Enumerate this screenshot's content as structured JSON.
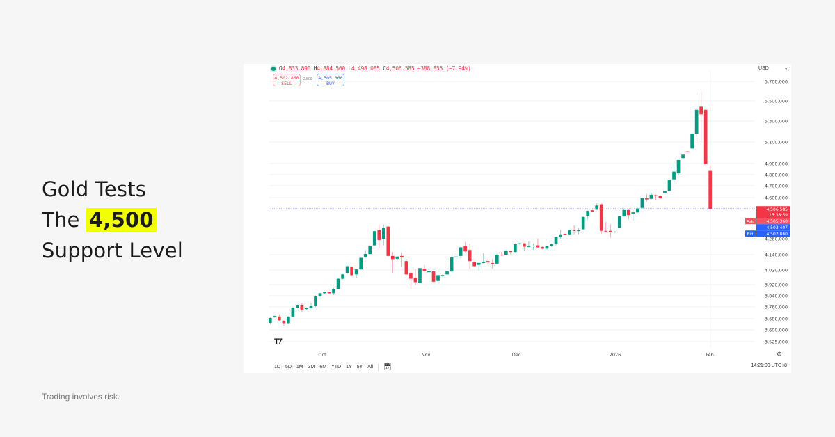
{
  "headline": {
    "line1": "Gold Tests",
    "line2_prefix": "The",
    "line2_highlight": "4,500",
    "line3": "Support Level"
  },
  "footer": "Trading involves risk.",
  "colors": {
    "up": "#089981",
    "down": "#f23645",
    "highlight": "#f2ff00",
    "bid": "#2962ff"
  },
  "chart_header": {
    "o_label": "O",
    "o": "4,833.890",
    "h_label": "H",
    "h": "4,884.560",
    "l_label": "L",
    "l": "4,498.085",
    "c_label": "C",
    "c": "4,506.585",
    "change": "−388.855 (−7.94%)",
    "sell_price": "4,502.860",
    "sell_label": "SELL",
    "spread": "2.500",
    "buy_price": "4,505.360",
    "buy_label": "BUY",
    "currency": "USD"
  },
  "timeframes": [
    "1D",
    "5D",
    "1M",
    "3M",
    "6M",
    "YTD",
    "1Y",
    "5Y",
    "All"
  ],
  "timezone": "14:21:00 UTC+8",
  "logo": "TV",
  "chart_data": {
    "type": "candlestick",
    "x_labels": [
      "Oct",
      "Nov",
      "Dec",
      "2026",
      "Feb"
    ],
    "y_ticks": [
      5700,
      5500,
      5300,
      5100,
      4900,
      4800,
      4700,
      4600,
      4260,
      4140,
      4020,
      3920,
      3840,
      3760,
      3680,
      3600,
      3525
    ],
    "y_tick_labels": [
      "5,700.000",
      "5,500.000",
      "5,300.000",
      "5,100.000",
      "4,900.000",
      "4,800.000",
      "4,700.000",
      "4,600.000",
      "4,260.000",
      "4,140.000",
      "4,020.000",
      "3,920.000",
      "3,840.000",
      "3,760.000",
      "3,680.000",
      "3,600.000",
      "3,525.000"
    ],
    "price_line": 4506.585,
    "price_labels": {
      "last": "4,506.585",
      "countdown": "15:38:59",
      "ask_label": "Ask",
      "ask": "4,505.360",
      "mid": "4,503.407",
      "bid_label": "Bid",
      "bid": "4,502.860"
    },
    "ohlc": [
      [
        3650,
        3690,
        3640,
        3685
      ],
      [
        3690,
        3702,
        3686,
        3698
      ],
      [
        3695,
        3712,
        3660,
        3668
      ],
      [
        3665,
        3670,
        3630,
        3648
      ],
      [
        3648,
        3698,
        3644,
        3695
      ],
      [
        3695,
        3760,
        3690,
        3755
      ],
      [
        3755,
        3774,
        3750,
        3770
      ],
      [
        3770,
        3790,
        3725,
        3742
      ],
      [
        3745,
        3756,
        3740,
        3752
      ],
      [
        3752,
        3790,
        3748,
        3765
      ],
      [
        3765,
        3840,
        3760,
        3835
      ],
      [
        3835,
        3862,
        3830,
        3858
      ],
      [
        3858,
        3870,
        3854,
        3866
      ],
      [
        3866,
        3870,
        3852,
        3858
      ],
      [
        3858,
        3895,
        3845,
        3890
      ],
      [
        3890,
        3964,
        3885,
        3960
      ],
      [
        3960,
        3994,
        3955,
        3990
      ],
      [
        4000,
        4055,
        3994,
        4050
      ],
      [
        4043,
        4048,
        3980,
        3985
      ],
      [
        3990,
        4030,
        3965,
        4025
      ],
      [
        4025,
        4120,
        4020,
        4115
      ],
      [
        4120,
        4175,
        4115,
        4145
      ],
      [
        4145,
        4210,
        4140,
        4205
      ],
      [
        4210,
        4326,
        4205,
        4322
      ],
      [
        4330,
        4378,
        4190,
        4250
      ],
      [
        4258,
        4378,
        4210,
        4348
      ],
      [
        4360,
        4365,
        4125,
        4130
      ],
      [
        4130,
        4160,
        4000,
        4105
      ],
      [
        4108,
        4128,
        4102,
        4125
      ],
      [
        4130,
        4155,
        4045,
        4118
      ],
      [
        4090,
        4110,
        3985,
        3990
      ],
      [
        4000,
        4005,
        3895,
        3960
      ],
      [
        3965,
        4030,
        3915,
        3937
      ],
      [
        3930,
        4040,
        3925,
        4035
      ],
      [
        4030,
        4060,
        4010,
        4015
      ],
      [
        4005,
        4016,
        4000,
        4012
      ],
      [
        4010,
        4014,
        3935,
        3940
      ],
      [
        3945,
        3990,
        3940,
        3985
      ],
      [
        3978,
        3990,
        3972,
        3985
      ],
      [
        3990,
        4014,
        3986,
        4010
      ],
      [
        4010,
        4124,
        4005,
        4120
      ],
      [
        4120,
        4150,
        4116,
        4125
      ],
      [
        4130,
        4200,
        4110,
        4195
      ],
      [
        4205,
        4236,
        4160,
        4165
      ],
      [
        4175,
        4220,
        4030,
        4090
      ],
      [
        4085,
        4090,
        4045,
        4050
      ],
      [
        4060,
        4080,
        4015,
        4075
      ],
      [
        4075,
        4150,
        4070,
        4085
      ],
      [
        4090,
        4110,
        4050,
        4080
      ],
      [
        4075,
        4105,
        4030,
        4070
      ],
      [
        4070,
        4144,
        4066,
        4140
      ],
      [
        4140,
        4160,
        4130,
        4135
      ],
      [
        4140,
        4175,
        4136,
        4170
      ],
      [
        4168,
        4172,
        4140,
        4160
      ],
      [
        4160,
        4222,
        4156,
        4218
      ],
      [
        4220,
        4228,
        4216,
        4225
      ],
      [
        4225,
        4230,
        4170,
        4200
      ],
      [
        4198,
        4240,
        4194,
        4205
      ],
      [
        4205,
        4222,
        4175,
        4208
      ],
      [
        4210,
        4260,
        4190,
        4195
      ],
      [
        4198,
        4202,
        4180,
        4185
      ],
      [
        4185,
        4208,
        4180,
        4205
      ],
      [
        4205,
        4224,
        4200,
        4220
      ],
      [
        4222,
        4276,
        4210,
        4272
      ],
      [
        4273,
        4330,
        4262,
        4296
      ],
      [
        4300,
        4303,
        4292,
        4296
      ],
      [
        4296,
        4334,
        4292,
        4330
      ],
      [
        4330,
        4370,
        4296,
        4325
      ],
      [
        4322,
        4350,
        4296,
        4330
      ],
      [
        4338,
        4444,
        4334,
        4440
      ],
      [
        4450,
        4494,
        4420,
        4490
      ],
      [
        4495,
        4500,
        4480,
        4485
      ],
      [
        4500,
        4552,
        4495,
        4535
      ],
      [
        4545,
        4552,
        4300,
        4325
      ],
      [
        4325,
        4400,
        4308,
        4320
      ],
      [
        4325,
        4380,
        4267,
        4312
      ],
      [
        4312,
        4322,
        4308,
        4318
      ],
      [
        4350,
        4450,
        4345,
        4446
      ],
      [
        4446,
        4502,
        4440,
        4497
      ],
      [
        4497,
        4502,
        4420,
        4455
      ],
      [
        4465,
        4482,
        4410,
        4478
      ],
      [
        4478,
        4514,
        4474,
        4510
      ],
      [
        4515,
        4600,
        4510,
        4595
      ],
      [
        4595,
        4630,
        4570,
        4585
      ],
      [
        4590,
        4640,
        4585,
        4625
      ],
      [
        4620,
        4628,
        4580,
        4615
      ],
      [
        4612,
        4618,
        4590,
        4595
      ],
      [
        4640,
        4660,
        4636,
        4655
      ],
      [
        4659,
        4758,
        4655,
        4754
      ],
      [
        4758,
        4890,
        4740,
        4827
      ],
      [
        4812,
        4936,
        4790,
        4932
      ],
      [
        4950,
        4986,
        4945,
        4982
      ],
      [
        5012,
        5016,
        5002,
        5006
      ],
      [
        5040,
        5184,
        5035,
        5180
      ],
      [
        5180,
        5416,
        5150,
        5412
      ],
      [
        5442,
        5595,
        5100,
        5367
      ],
      [
        5412,
        5416,
        4890,
        4895
      ],
      [
        4833.89,
        4884.56,
        4498.085,
        4506.585
      ]
    ]
  }
}
